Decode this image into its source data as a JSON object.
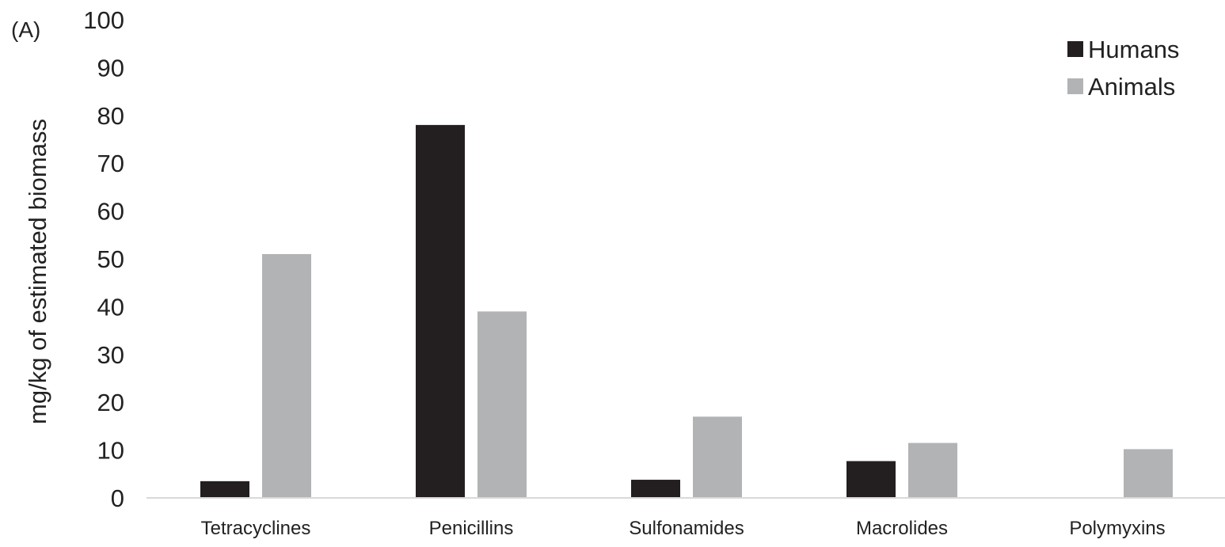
{
  "panel_label": "(A)",
  "colors": {
    "humans": "#231f20",
    "animals": "#b2b3b5",
    "axis": "#d9d9d9"
  },
  "chart_data": {
    "type": "bar",
    "title": "",
    "xlabel": "",
    "ylabel": "mg/kg of estimated biomass",
    "ylim": [
      0,
      100
    ],
    "yticks": [
      0,
      10,
      20,
      30,
      40,
      50,
      60,
      70,
      80,
      90,
      100
    ],
    "grid": false,
    "legend_position": "top-right",
    "categories": [
      "Tetracyclines",
      "Penicillins",
      "Sulfonamides",
      "Macrolides",
      "Polymyxins"
    ],
    "series": [
      {
        "name": "Humans",
        "color": "#231f20",
        "values": [
          3.5,
          78,
          3.8,
          7.7,
          0
        ]
      },
      {
        "name": "Animals",
        "color": "#b2b3b5",
        "values": [
          51,
          39,
          17,
          11.5,
          10.2
        ]
      }
    ]
  }
}
